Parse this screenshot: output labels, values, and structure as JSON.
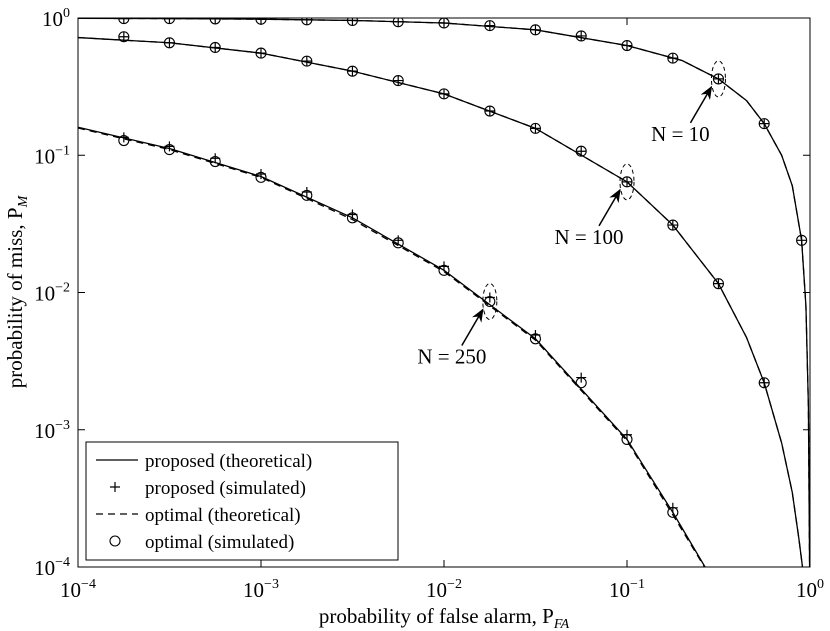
{
  "chart_data": {
    "type": "line",
    "xlabel": "probability of false alarm, P",
    "xlabel_sub": "FA",
    "ylabel": "probability of miss, P",
    "ylabel_sub": "M",
    "xscale": "log",
    "yscale": "log",
    "xlim": [
      0.0001,
      1
    ],
    "ylim": [
      0.0001,
      1
    ],
    "xticks": [
      {
        "value": 0.0001,
        "label": "10",
        "exponent": "−4"
      },
      {
        "value": 0.001,
        "label": "10",
        "exponent": "−3"
      },
      {
        "value": 0.01,
        "label": "10",
        "exponent": "−2"
      },
      {
        "value": 0.1,
        "label": "10",
        "exponent": "−1"
      },
      {
        "value": 1,
        "label": "10",
        "exponent": "0"
      }
    ],
    "yticks": [
      {
        "value": 0.0001,
        "label": "10",
        "exponent": "−4"
      },
      {
        "value": 0.001,
        "label": "10",
        "exponent": "−3"
      },
      {
        "value": 0.01,
        "label": "10",
        "exponent": "−2"
      },
      {
        "value": 0.1,
        "label": "10",
        "exponent": "−1"
      },
      {
        "value": 1,
        "label": "10",
        "exponent": "0"
      }
    ],
    "legend": "lower left",
    "series": [
      {
        "name": "proposed (theoretical)",
        "color": "#000000",
        "style": "solid",
        "curves": [
          {
            "x": [
              0.0001,
              0.000316,
              0.001,
              0.00316,
              0.01,
              0.0316,
              0.1,
              0.2,
              0.316,
              0.45,
              0.562,
              0.7,
              0.8,
              0.9,
              0.95,
              0.98,
              0.995
            ],
            "values": [
              0.995,
              0.99,
              0.98,
              0.96,
              0.92,
              0.82,
              0.63,
              0.49,
              0.36,
              0.25,
              0.17,
              0.1,
              0.06,
              0.024,
              0.008,
              0.0015,
              0.0001
            ]
          },
          {
            "x": [
              0.0001,
              0.000316,
              0.001,
              0.00316,
              0.01,
              0.0316,
              0.1,
              0.178,
              0.316,
              0.45,
              0.562,
              0.7,
              0.8,
              0.87,
              0.91
            ],
            "values": [
              0.72,
              0.66,
              0.555,
              0.41,
              0.28,
              0.157,
              0.064,
              0.031,
              0.0116,
              0.0047,
              0.0022,
              0.0008,
              0.00035,
              0.00016,
              0.0001
            ]
          },
          {
            "x": [
              0.0001,
              0.000316,
              0.001,
              0.00316,
              0.01,
              0.0316,
              0.1,
              0.178,
              0.267
            ],
            "values": [
              0.16,
              0.112,
              0.07,
              0.035,
              0.0145,
              0.0046,
              0.00085,
              0.00025,
              0.0001
            ]
          }
        ]
      },
      {
        "name": "proposed (simulated)",
        "color": "#000000",
        "marker": "plus",
        "curves": [
          {
            "x": [
              0.000178,
              0.000316,
              0.000562,
              0.001,
              0.00178,
              0.00316,
              0.00562,
              0.01,
              0.0178,
              0.0316,
              0.0562,
              0.1,
              0.178,
              0.316,
              0.562,
              0.9
            ],
            "values": [
              0.99,
              0.99,
              0.985,
              0.98,
              0.97,
              0.96,
              0.94,
              0.92,
              0.88,
              0.82,
              0.74,
              0.63,
              0.51,
              0.36,
              0.17,
              0.024
            ]
          },
          {
            "x": [
              0.000178,
              0.000316,
              0.000562,
              0.001,
              0.00178,
              0.00316,
              0.00562,
              0.01,
              0.0178,
              0.0316,
              0.0562,
              0.1,
              0.178,
              0.316,
              0.562
            ],
            "values": [
              0.73,
              0.66,
              0.61,
              0.555,
              0.485,
              0.41,
              0.35,
              0.28,
              0.21,
              0.157,
              0.107,
              0.064,
              0.031,
              0.0116,
              0.0022
            ]
          },
          {
            "x": [
              0.000178,
              0.000316,
              0.000562,
              0.001,
              0.00178,
              0.00316,
              0.00562,
              0.01,
              0.0178,
              0.0316,
              0.0562,
              0.1,
              0.178
            ],
            "values": [
              0.135,
              0.116,
              0.095,
              0.073,
              0.054,
              0.037,
              0.024,
              0.0155,
              0.0092,
              0.0049,
              0.0024,
              0.00092,
              0.00027
            ]
          }
        ]
      },
      {
        "name": "optimal (theoretical)",
        "color": "#000000",
        "style": "dashed",
        "curves": [
          {
            "x": [
              0.0001,
              0.000316,
              0.001,
              0.00316,
              0.01,
              0.0316,
              0.1,
              0.2,
              0.316,
              0.45,
              0.562,
              0.7,
              0.8,
              0.9,
              0.95,
              0.98,
              0.995
            ],
            "values": [
              0.995,
              0.99,
              0.98,
              0.96,
              0.92,
              0.82,
              0.63,
              0.49,
              0.36,
              0.25,
              0.17,
              0.1,
              0.06,
              0.024,
              0.008,
              0.0015,
              0.0001
            ]
          },
          {
            "x": [
              0.0001,
              0.000316,
              0.001,
              0.00316,
              0.01,
              0.0316,
              0.1,
              0.178,
              0.316,
              0.45,
              0.562,
              0.7,
              0.8,
              0.87,
              0.91
            ],
            "values": [
              0.72,
              0.66,
              0.555,
              0.41,
              0.28,
              0.157,
              0.064,
              0.031,
              0.0116,
              0.0047,
              0.0022,
              0.0008,
              0.00035,
              0.00016,
              0.0001
            ]
          },
          {
            "x": [
              0.0001,
              0.000316,
              0.001,
              0.00316,
              0.01,
              0.0316,
              0.1,
              0.178,
              0.265
            ],
            "values": [
              0.158,
              0.11,
              0.069,
              0.034,
              0.0142,
              0.0045,
              0.00083,
              0.00024,
              0.0001
            ]
          }
        ]
      },
      {
        "name": "optimal (simulated)",
        "color": "#000000",
        "marker": "circle",
        "curves": [
          {
            "x": [
              0.000178,
              0.000316,
              0.000562,
              0.001,
              0.00178,
              0.00316,
              0.00562,
              0.01,
              0.0178,
              0.0316,
              0.0562,
              0.1,
              0.178,
              0.316,
              0.562,
              0.9
            ],
            "values": [
              0.99,
              0.99,
              0.985,
              0.98,
              0.97,
              0.96,
              0.94,
              0.92,
              0.88,
              0.82,
              0.74,
              0.63,
              0.51,
              0.36,
              0.17,
              0.024
            ]
          },
          {
            "x": [
              0.000178,
              0.000316,
              0.000562,
              0.001,
              0.00178,
              0.00316,
              0.00562,
              0.01,
              0.0178,
              0.0316,
              0.0562,
              0.1,
              0.178,
              0.316,
              0.562
            ],
            "values": [
              0.73,
              0.66,
              0.61,
              0.555,
              0.485,
              0.41,
              0.35,
              0.28,
              0.21,
              0.157,
              0.107,
              0.064,
              0.031,
              0.0116,
              0.0022
            ]
          },
          {
            "x": [
              0.000178,
              0.000316,
              0.000562,
              0.001,
              0.00178,
              0.00316,
              0.00562,
              0.01,
              0.0178,
              0.0316,
              0.0562,
              0.1,
              0.178
            ],
            "values": [
              0.128,
              0.11,
              0.09,
              0.069,
              0.051,
              0.035,
              0.023,
              0.0145,
              0.0086,
              0.0046,
              0.0022,
              0.00085,
              0.00025
            ]
          }
        ]
      }
    ],
    "annotations": [
      {
        "text": "N = 10",
        "x": 0.316,
        "y": 0.36
      },
      {
        "text": "N = 100",
        "x": 0.1,
        "y": 0.064
      },
      {
        "text": "N = 250",
        "x": 0.0178,
        "y": 0.0086
      }
    ]
  }
}
